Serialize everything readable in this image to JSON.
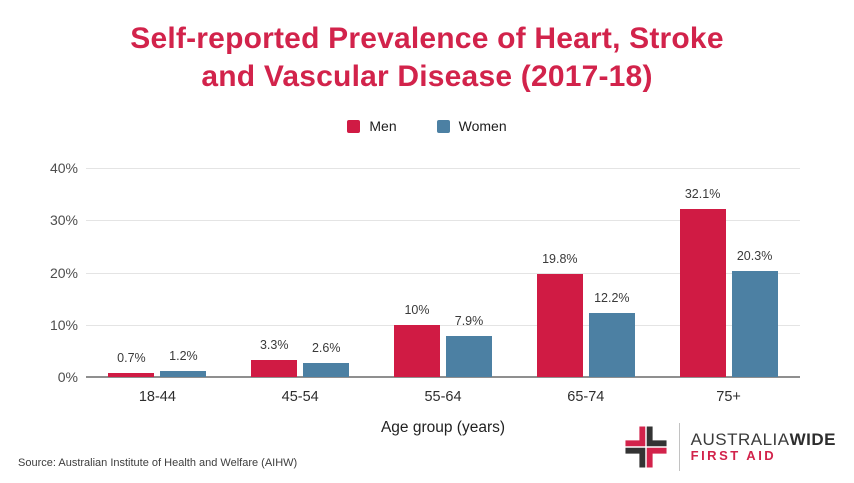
{
  "title": {
    "line1": "Self-reported Prevalence of Heart, Stroke",
    "line2": "and Vascular Disease (2017-18)"
  },
  "legend": [
    {
      "label": "Men",
      "color": "#d01b44"
    },
    {
      "label": "Women",
      "color": "#4c80a3"
    }
  ],
  "chart_data": {
    "type": "bar",
    "title": "Self-reported Prevalence of Heart, Stroke and Vascular Disease (2017-18)",
    "categories": [
      "18-44",
      "45-54",
      "55-64",
      "65-74",
      "75+"
    ],
    "series": [
      {
        "name": "Men",
        "color": "#d01b44",
        "values": [
          0.7,
          3.3,
          10,
          19.8,
          32.1
        ],
        "labels": [
          "0.7%",
          "3.3%",
          "10%",
          "19.8%",
          "32.1%"
        ]
      },
      {
        "name": "Women",
        "color": "#4c80a3",
        "values": [
          1.2,
          2.6,
          7.9,
          12.2,
          20.3
        ],
        "labels": [
          "1.2%",
          "2.6%",
          "7.9%",
          "12.2%",
          "20.3%"
        ]
      }
    ],
    "xlabel": "Age group (years)",
    "ylabel": "",
    "ylim": [
      0,
      40
    ],
    "yticks": [
      0,
      10,
      20,
      30,
      40
    ],
    "ytick_labels": [
      "0%",
      "10%",
      "20%",
      "30%",
      "40%"
    ],
    "grid": true,
    "legend_position": "top-center"
  },
  "source": "Source: Australian Institute of Health and Welfare (AIHW)",
  "logo": {
    "name_regular": "AUSTRALIA",
    "name_bold": "WIDE",
    "subtitle": "FIRST AID",
    "color_red": "#d2234b",
    "color_dark": "#333333"
  },
  "colors": {
    "title": "#d2234b",
    "men": "#d01b44",
    "women": "#4c80a3",
    "gridline": "#e4e4e4",
    "baseline": "#8f8f8f"
  }
}
